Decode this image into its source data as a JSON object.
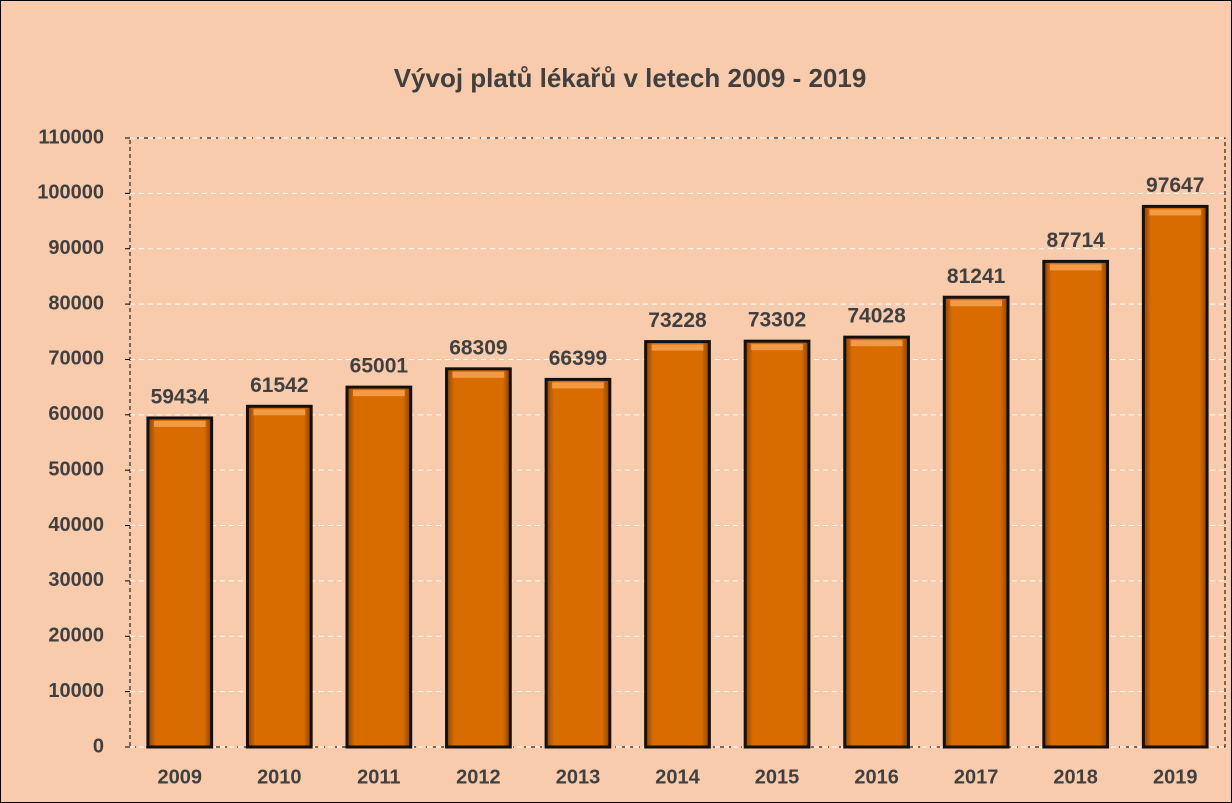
{
  "chart_data": {
    "type": "bar",
    "title": "Vývoj platů lékařů v letech 2009 - 2019",
    "categories": [
      "2009",
      "2010",
      "2011",
      "2012",
      "2013",
      "2014",
      "2015",
      "2016",
      "2017",
      "2018",
      "2019"
    ],
    "values": [
      59434,
      61542,
      65001,
      68309,
      66399,
      73228,
      73302,
      74028,
      81241,
      87714,
      97647
    ],
    "color": "#d96c00",
    "ylim": [
      0,
      110000
    ],
    "yticks": [
      0,
      10000,
      20000,
      30000,
      40000,
      50000,
      60000,
      70000,
      80000,
      90000,
      100000,
      110000
    ],
    "grid": true
  }
}
